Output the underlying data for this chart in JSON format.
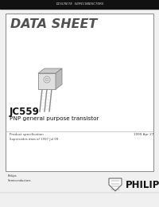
{
  "bg_color": "#f0f0f0",
  "header_bar_color": "#111111",
  "header_text": "DISCRETE SEMICONDUCTORS",
  "header_text_color": "#cccccc",
  "main_box_bg": "#ffffff",
  "main_box_edge": "#888888",
  "title_text": "DATA SHEET",
  "title_color": "#333333",
  "part_number": "JC559",
  "description": "PNP general purpose transistor",
  "spec_left": "Product specification",
  "spec_right": "1999 Apr 27",
  "supersedes": "Supersedes data of 1997 Jul 09",
  "philips_text": "PHILIPS",
  "philips_sub": "Philips\nSemiconductors",
  "transistor_color": "#dddddd",
  "transistor_dark": "#999999",
  "transistor_edge": "#888888",
  "lead_color": "#888888"
}
